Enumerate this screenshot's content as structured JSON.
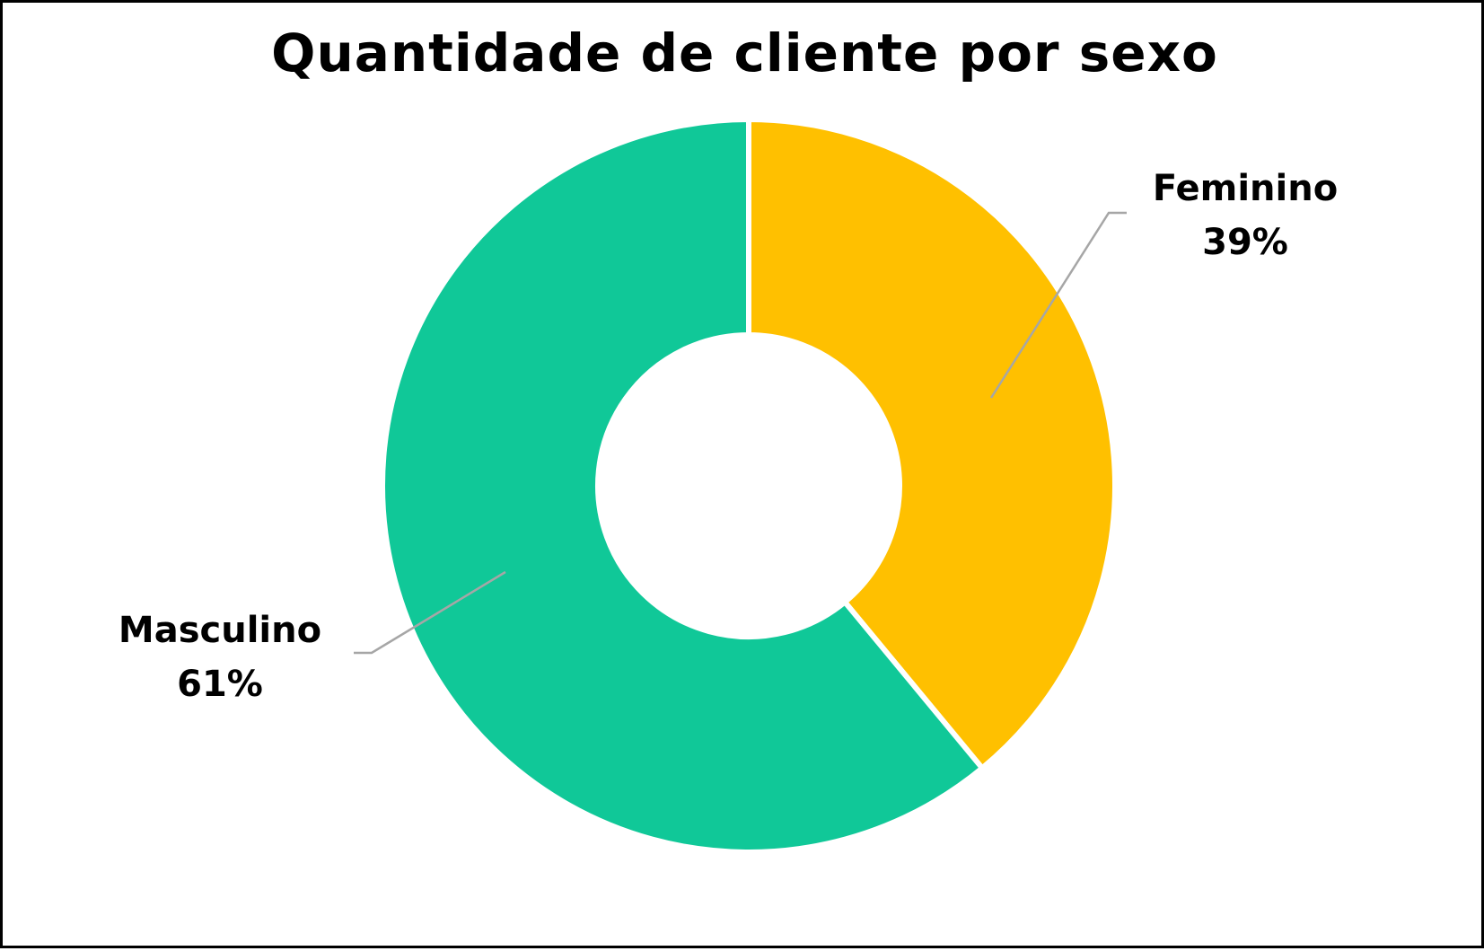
{
  "chart_data": {
    "type": "pie",
    "variant": "donut",
    "title": "Quantidade de cliente por sexo",
    "start_angle_deg": 0,
    "direction": "clockwise",
    "slices": [
      {
        "label": "Feminino",
        "value": 39,
        "value_label": "39%",
        "color": "#FFC000"
      },
      {
        "label": "Masculino",
        "value": 61,
        "value_label": "61%",
        "color": "#10C898"
      }
    ],
    "leader_line_color": "#A6A6A6"
  }
}
